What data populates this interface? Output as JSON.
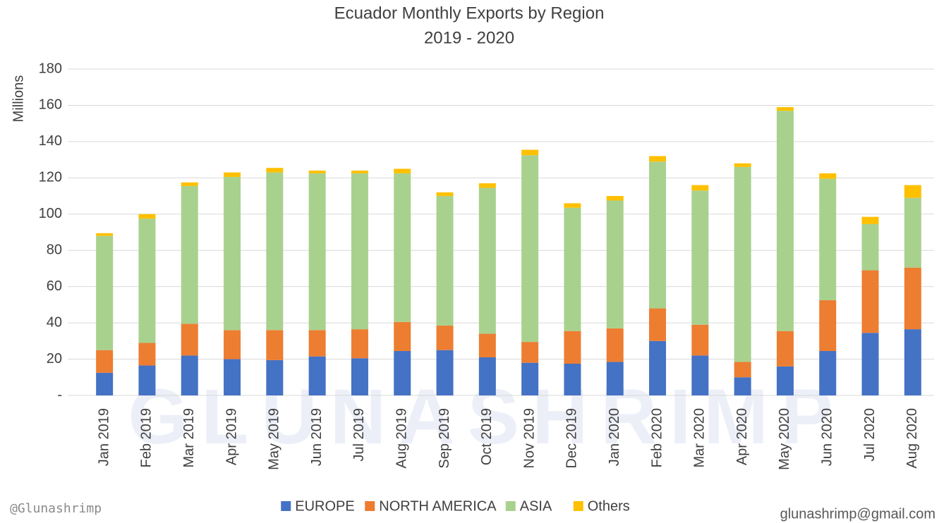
{
  "chart_data": {
    "type": "stacked_bar",
    "title": "Ecuador Monthly Exports by Region",
    "subtitle": "2019 - 2020",
    "y_label": "Millions",
    "categories": [
      "Jan 2019",
      "Feb 2019",
      "Mar 2019",
      "Apr 2019",
      "May 2019",
      "Jun 2019",
      "Jul 2019",
      "Aug 2019",
      "Sep 2019",
      "Oct 2019",
      "Nov 2019",
      "Dec 2019",
      "Jan 2020",
      "Feb 2020",
      "Mar 2020",
      "Apr 2020",
      "May 2020",
      "Jun 2020",
      "Jul 2020",
      "Aug 2020"
    ],
    "series": [
      {
        "name": "EUROPE",
        "color": "#4472c4",
        "values": [
          12.5,
          16.5,
          22,
          20,
          19.5,
          21.5,
          20.5,
          24.5,
          25,
          21,
          18,
          17.5,
          18.5,
          30,
          22,
          10,
          16,
          24.5,
          34.5,
          36.5
        ]
      },
      {
        "name": "NORTH AMERICA",
        "color": "#ed7d31",
        "values": [
          12.5,
          12.5,
          17.5,
          16,
          16.5,
          14.5,
          16,
          16,
          13.5,
          13,
          11.5,
          18,
          18.5,
          18,
          17,
          8.5,
          19.5,
          28,
          34.5,
          34
        ]
      },
      {
        "name": "ASIA",
        "color": "#a9d18e",
        "values": [
          63,
          68.5,
          76,
          84.5,
          87,
          86.5,
          86,
          82,
          71.5,
          80.5,
          103,
          68,
          70.5,
          81,
          74,
          107.5,
          121.5,
          67,
          25.5,
          38.5
        ]
      },
      {
        "name": "Others",
        "color": "#ffc000",
        "values": [
          1.5,
          2.5,
          2,
          2.5,
          2.5,
          1.5,
          1.5,
          2.5,
          2,
          2.5,
          3,
          2.5,
          2.5,
          3,
          3,
          2,
          2,
          3,
          4,
          7
        ]
      }
    ],
    "ylim": [
      0,
      180
    ],
    "yticks": [
      {
        "value": 0,
        "label": "-"
      },
      20,
      40,
      60,
      80,
      100,
      120,
      140,
      160,
      180
    ],
    "grid": true,
    "legend": "bottom",
    "watermark": "GLUNASHRIMP",
    "footer_left": "@Glunashrimp",
    "footer_right": "glunashrimp@gmail.com"
  }
}
